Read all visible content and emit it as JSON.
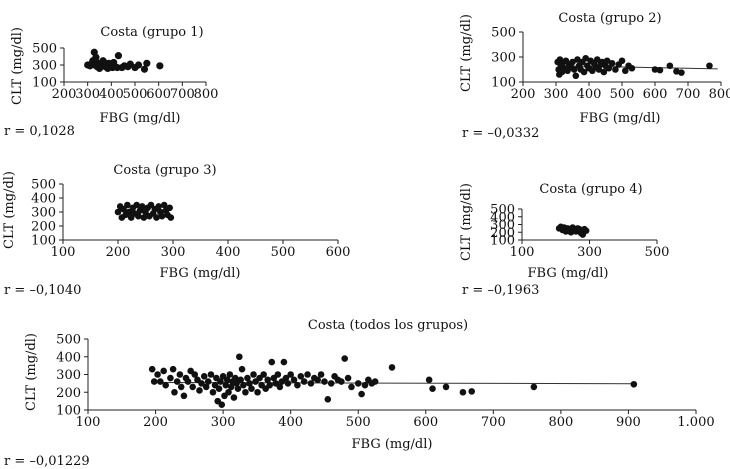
{
  "chart_data": [
    {
      "type": "scatter",
      "title": "Costa (grupo 1)",
      "xlabel": "FBG (mg/dl)",
      "ylabel": "CLT (mg/dl)",
      "xlim": [
        200,
        800
      ],
      "ylim": [
        100,
        500
      ],
      "xticks": [
        200,
        300,
        400,
        500,
        600,
        700,
        800
      ],
      "yticks": [
        100,
        300,
        500
      ],
      "xtick_labels": [
        "200",
        "300",
        "400",
        "500",
        "600",
        "700",
        "800"
      ],
      "ytick_labels": [
        "100",
        "300",
        "500"
      ],
      "r_label": "r = 0,1028",
      "fit_line": null,
      "points": [
        [
          300,
          300
        ],
        [
          310,
          290
        ],
        [
          318,
          320
        ],
        [
          322,
          350
        ],
        [
          328,
          450
        ],
        [
          330,
          300
        ],
        [
          335,
          390
        ],
        [
          340,
          280
        ],
        [
          345,
          320
        ],
        [
          350,
          260
        ],
        [
          355,
          310
        ],
        [
          360,
          300
        ],
        [
          365,
          350
        ],
        [
          370,
          330
        ],
        [
          375,
          280
        ],
        [
          380,
          310
        ],
        [
          385,
          260
        ],
        [
          390,
          320
        ],
        [
          400,
          300
        ],
        [
          405,
          270
        ],
        [
          410,
          330
        ],
        [
          415,
          280
        ],
        [
          425,
          270
        ],
        [
          430,
          410
        ],
        [
          445,
          270
        ],
        [
          455,
          290
        ],
        [
          470,
          280
        ],
        [
          480,
          310
        ],
        [
          500,
          270
        ],
        [
          515,
          300
        ],
        [
          540,
          250
        ],
        [
          550,
          320
        ],
        [
          605,
          290
        ]
      ]
    },
    {
      "type": "scatter",
      "title": "Costa (grupo 2)",
      "xlabel": "FBG (mg/dl)",
      "ylabel": "CLT (mg/dl)",
      "xlim": [
        200,
        800
      ],
      "ylim": [
        100,
        500
      ],
      "xticks": [
        200,
        300,
        400,
        500,
        600,
        700,
        800
      ],
      "yticks": [
        100,
        300,
        500
      ],
      "xtick_labels": [
        "200",
        "300",
        "400",
        "500",
        "600",
        "700",
        "800"
      ],
      "ytick_labels": [
        "100",
        "300",
        "500"
      ],
      "r_label": "r = –0,0332",
      "fit_line": [
        [
          305,
          230
        ],
        [
          790,
          205
        ]
      ],
      "points": [
        [
          305,
          260
        ],
        [
          308,
          200
        ],
        [
          310,
          160
        ],
        [
          312,
          280
        ],
        [
          315,
          230
        ],
        [
          318,
          180
        ],
        [
          320,
          250
        ],
        [
          325,
          210
        ],
        [
          330,
          270
        ],
        [
          335,
          190
        ],
        [
          340,
          240
        ],
        [
          345,
          220
        ],
        [
          350,
          260
        ],
        [
          355,
          200
        ],
        [
          360,
          150
        ],
        [
          365,
          280
        ],
        [
          370,
          230
        ],
        [
          375,
          200
        ],
        [
          380,
          260
        ],
        [
          385,
          180
        ],
        [
          390,
          290
        ],
        [
          395,
          230
        ],
        [
          400,
          210
        ],
        [
          405,
          270
        ],
        [
          410,
          190
        ],
        [
          415,
          250
        ],
        [
          420,
          220
        ],
        [
          425,
          280
        ],
        [
          430,
          200
        ],
        [
          435,
          240
        ],
        [
          440,
          260
        ],
        [
          445,
          180
        ],
        [
          450,
          230
        ],
        [
          455,
          270
        ],
        [
          460,
          210
        ],
        [
          470,
          250
        ],
        [
          480,
          200
        ],
        [
          490,
          240
        ],
        [
          500,
          270
        ],
        [
          510,
          190
        ],
        [
          520,
          230
        ],
        [
          530,
          210
        ],
        [
          600,
          200
        ],
        [
          615,
          195
        ],
        [
          645,
          230
        ],
        [
          665,
          185
        ],
        [
          680,
          175
        ],
        [
          765,
          230
        ]
      ]
    },
    {
      "type": "scatter",
      "title": "Costa (grupo 3)",
      "xlabel": "FBG (mg/dl)",
      "ylabel": "CLT (mg/dl)",
      "xlim": [
        100,
        600
      ],
      "ylim": [
        100,
        500
      ],
      "xticks": [
        100,
        200,
        300,
        400,
        500,
        600
      ],
      "yticks": [
        100,
        200,
        300,
        400,
        500
      ],
      "xtick_labels": [
        "100",
        "200",
        "300",
        "400",
        "500",
        "600"
      ],
      "ytick_labels": [
        "100",
        "200",
        "300",
        "400",
        "500"
      ],
      "r_label": "r = –0,1040",
      "fit_line": null,
      "points": [
        [
          200,
          300
        ],
        [
          204,
          340
        ],
        [
          207,
          260
        ],
        [
          210,
          320
        ],
        [
          214,
          280
        ],
        [
          217,
          350
        ],
        [
          220,
          300
        ],
        [
          224,
          260
        ],
        [
          227,
          330
        ],
        [
          230,
          290
        ],
        [
          234,
          350
        ],
        [
          237,
          270
        ],
        [
          240,
          310
        ],
        [
          244,
          340
        ],
        [
          247,
          260
        ],
        [
          250,
          300
        ],
        [
          254,
          330
        ],
        [
          257,
          270
        ],
        [
          260,
          350
        ],
        [
          264,
          290
        ],
        [
          267,
          320
        ],
        [
          270,
          260
        ],
        [
          274,
          340
        ],
        [
          277,
          300
        ],
        [
          280,
          270
        ],
        [
          284,
          350
        ],
        [
          287,
          310
        ],
        [
          290,
          280
        ],
        [
          294,
          330
        ],
        [
          296,
          260
        ]
      ]
    },
    {
      "type": "scatter",
      "title": "Costa (grupo 4)",
      "xlabel": "FBG (mg/dl)",
      "ylabel": "CLT (mg/dl)",
      "xlim": [
        100,
        500
      ],
      "ylim": [
        100,
        500
      ],
      "xticks": [
        100,
        300,
        500
      ],
      "yticks": [
        100,
        200,
        300,
        400,
        500
      ],
      "xtick_labels": [
        "100",
        "300",
        "500"
      ],
      "ytick_labels": [
        "100",
        "200",
        "300",
        "400",
        "500"
      ],
      "r_label": "r = –0,1963",
      "fit_line": null,
      "points": [
        [
          210,
          250
        ],
        [
          215,
          270
        ],
        [
          220,
          230
        ],
        [
          225,
          260
        ],
        [
          230,
          210
        ],
        [
          235,
          250
        ],
        [
          240,
          240
        ],
        [
          245,
          200
        ],
        [
          250,
          260
        ],
        [
          255,
          230
        ],
        [
          260,
          210
        ],
        [
          265,
          250
        ],
        [
          270,
          240
        ],
        [
          275,
          190
        ],
        [
          280,
          170
        ],
        [
          285,
          240
        ],
        [
          290,
          220
        ]
      ]
    },
    {
      "type": "scatter",
      "title": "Costa (todos los grupos)",
      "xlabel": "FBG (mg/dl)",
      "ylabel": "CLT (mg/dl)",
      "xlim": [
        100,
        1000
      ],
      "ylim": [
        100,
        500
      ],
      "xticks": [
        100,
        200,
        300,
        400,
        500,
        600,
        700,
        800,
        900,
        1000
      ],
      "yticks": [
        100,
        200,
        300,
        400,
        500
      ],
      "xtick_labels": [
        "100",
        "200",
        "300",
        "400",
        "500",
        "600",
        "700",
        "800",
        "900",
        "1.000"
      ],
      "ytick_labels": [
        "100",
        "200",
        "300",
        "400",
        "500"
      ],
      "r_label": "r = –0,01229",
      "fit_line": [
        [
          195,
          255
        ],
        [
          910,
          248
        ]
      ],
      "points": [
        [
          195,
          330
        ],
        [
          198,
          260
        ],
        [
          203,
          300
        ],
        [
          207,
          260
        ],
        [
          212,
          320
        ],
        [
          215,
          240
        ],
        [
          222,
          280
        ],
        [
          226,
          330
        ],
        [
          228,
          200
        ],
        [
          232,
          260
        ],
        [
          236,
          300
        ],
        [
          238,
          230
        ],
        [
          242,
          180
        ],
        [
          245,
          280
        ],
        [
          248,
          260
        ],
        [
          252,
          320
        ],
        [
          255,
          230
        ],
        [
          258,
          300
        ],
        [
          262,
          270
        ],
        [
          265,
          210
        ],
        [
          268,
          250
        ],
        [
          272,
          290
        ],
        [
          275,
          230
        ],
        [
          278,
          260
        ],
        [
          282,
          300
        ],
        [
          285,
          200
        ],
        [
          288,
          240
        ],
        [
          290,
          280
        ],
        [
          292,
          150
        ],
        [
          294,
          220
        ],
        [
          296,
          260
        ],
        [
          298,
          130
        ],
        [
          300,
          290
        ],
        [
          302,
          180
        ],
        [
          304,
          240
        ],
        [
          306,
          270
        ],
        [
          308,
          200
        ],
        [
          310,
          300
        ],
        [
          312,
          230
        ],
        [
          314,
          260
        ],
        [
          316,
          170
        ],
        [
          318,
          280
        ],
        [
          320,
          250
        ],
        [
          322,
          220
        ],
        [
          324,
          400
        ],
        [
          326,
          270
        ],
        [
          328,
          330
        ],
        [
          330,
          240
        ],
        [
          333,
          200
        ],
        [
          336,
          280
        ],
        [
          339,
          250
        ],
        [
          342,
          220
        ],
        [
          345,
          300
        ],
        [
          348,
          260
        ],
        [
          351,
          200
        ],
        [
          354,
          280
        ],
        [
          357,
          240
        ],
        [
          360,
          300
        ],
        [
          363,
          220
        ],
        [
          366,
          270
        ],
        [
          369,
          240
        ],
        [
          372,
          370
        ],
        [
          375,
          280
        ],
        [
          378,
          250
        ],
        [
          381,
          300
        ],
        [
          384,
          230
        ],
        [
          387,
          260
        ],
        [
          390,
          370
        ],
        [
          393,
          280
        ],
        [
          396,
          250
        ],
        [
          400,
          300
        ],
        [
          405,
          270
        ],
        [
          410,
          240
        ],
        [
          415,
          290
        ],
        [
          420,
          260
        ],
        [
          425,
          300
        ],
        [
          430,
          250
        ],
        [
          435,
          280
        ],
        [
          440,
          270
        ],
        [
          445,
          300
        ],
        [
          450,
          260
        ],
        [
          455,
          160
        ],
        [
          460,
          250
        ],
        [
          465,
          290
        ],
        [
          470,
          270
        ],
        [
          475,
          260
        ],
        [
          480,
          390
        ],
        [
          485,
          280
        ],
        [
          490,
          230
        ],
        [
          500,
          250
        ],
        [
          505,
          190
        ],
        [
          510,
          240
        ],
        [
          515,
          270
        ],
        [
          520,
          250
        ],
        [
          525,
          260
        ],
        [
          550,
          340
        ],
        [
          605,
          270
        ],
        [
          610,
          220
        ],
        [
          630,
          230
        ],
        [
          655,
          200
        ],
        [
          668,
          205
        ],
        [
          760,
          230
        ],
        [
          908,
          245
        ]
      ]
    }
  ]
}
